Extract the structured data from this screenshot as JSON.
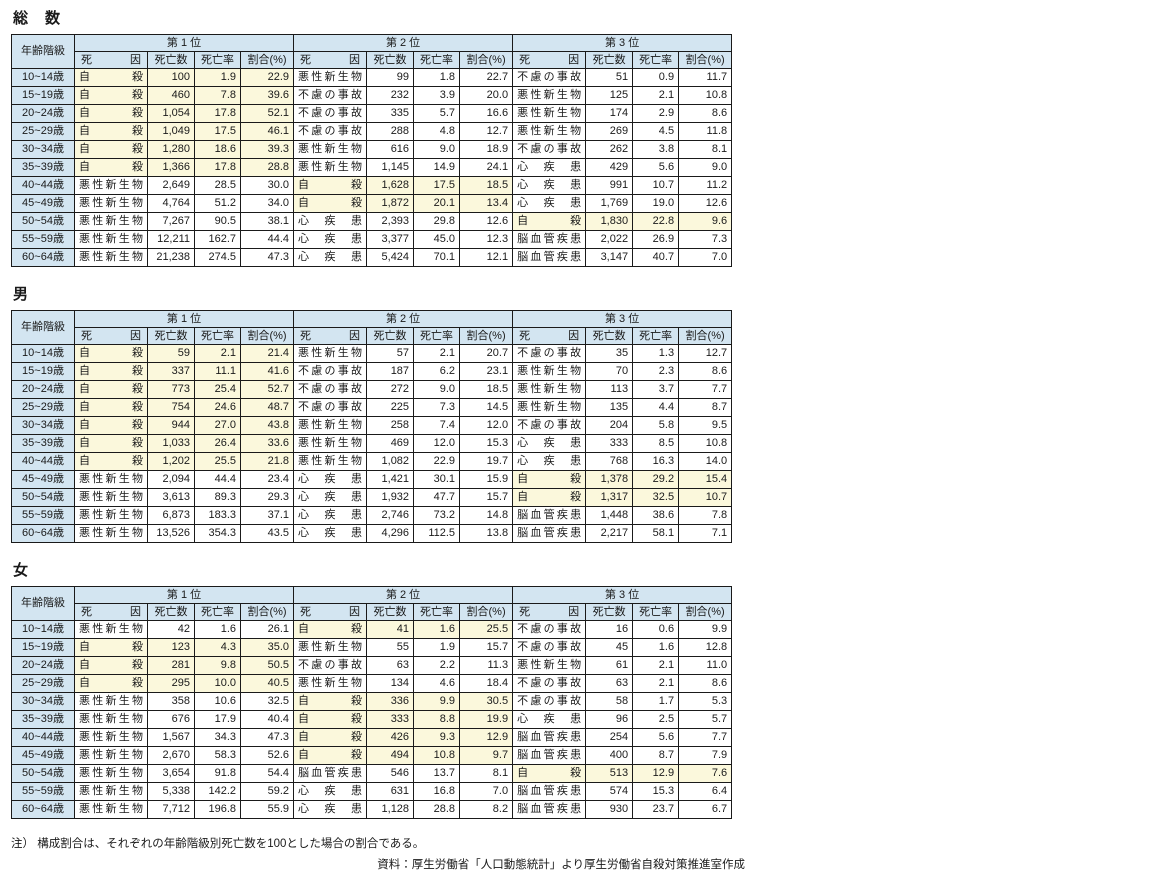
{
  "colors": {
    "header_bg": "#d3e5f1",
    "highlight_bg": "#fbf8dc",
    "border": "#1a1a1a"
  },
  "columns": {
    "age": "年齢階級",
    "cause": "死 因",
    "deaths": "死亡数",
    "rate": "死亡率",
    "share": "割合(%)"
  },
  "rank_headers": [
    "第 1 位",
    "第 2 位",
    "第 3 位"
  ],
  "highlight_meaning": "suicide-cells-highlighted",
  "tables": [
    {
      "id": "total",
      "title": "総　数",
      "rows": [
        {
          "age": "10~14歳",
          "ranks": [
            [
              "自 殺",
              "100",
              "1.9",
              "22.9",
              1
            ],
            [
              "悪性新生物",
              "99",
              "1.8",
              "22.7",
              0
            ],
            [
              "不慮の事故",
              "51",
              "0.9",
              "11.7",
              0
            ]
          ]
        },
        {
          "age": "15~19歳",
          "ranks": [
            [
              "自 殺",
              "460",
              "7.8",
              "39.6",
              1
            ],
            [
              "不慮の事故",
              "232",
              "3.9",
              "20.0",
              0
            ],
            [
              "悪性新生物",
              "125",
              "2.1",
              "10.8",
              0
            ]
          ]
        },
        {
          "age": "20~24歳",
          "ranks": [
            [
              "自 殺",
              "1,054",
              "17.8",
              "52.1",
              1
            ],
            [
              "不慮の事故",
              "335",
              "5.7",
              "16.6",
              0
            ],
            [
              "悪性新生物",
              "174",
              "2.9",
              "8.6",
              0
            ]
          ]
        },
        {
          "age": "25~29歳",
          "ranks": [
            [
              "自 殺",
              "1,049",
              "17.5",
              "46.1",
              1
            ],
            [
              "不慮の事故",
              "288",
              "4.8",
              "12.7",
              0
            ],
            [
              "悪性新生物",
              "269",
              "4.5",
              "11.8",
              0
            ]
          ]
        },
        {
          "age": "30~34歳",
          "ranks": [
            [
              "自 殺",
              "1,280",
              "18.6",
              "39.3",
              1
            ],
            [
              "悪性新生物",
              "616",
              "9.0",
              "18.9",
              0
            ],
            [
              "不慮の事故",
              "262",
              "3.8",
              "8.1",
              0
            ]
          ]
        },
        {
          "age": "35~39歳",
          "ranks": [
            [
              "自 殺",
              "1,366",
              "17.8",
              "28.8",
              1
            ],
            [
              "悪性新生物",
              "1,145",
              "14.9",
              "24.1",
              0
            ],
            [
              "心 疾 患",
              "429",
              "5.6",
              "9.0",
              0
            ]
          ]
        },
        {
          "age": "40~44歳",
          "ranks": [
            [
              "悪性新生物",
              "2,649",
              "28.5",
              "30.0",
              0
            ],
            [
              "自 殺",
              "1,628",
              "17.5",
              "18.5",
              1
            ],
            [
              "心 疾 患",
              "991",
              "10.7",
              "11.2",
              0
            ]
          ]
        },
        {
          "age": "45~49歳",
          "ranks": [
            [
              "悪性新生物",
              "4,764",
              "51.2",
              "34.0",
              0
            ],
            [
              "自 殺",
              "1,872",
              "20.1",
              "13.4",
              1
            ],
            [
              "心 疾 患",
              "1,769",
              "19.0",
              "12.6",
              0
            ]
          ]
        },
        {
          "age": "50~54歳",
          "ranks": [
            [
              "悪性新生物",
              "7,267",
              "90.5",
              "38.1",
              0
            ],
            [
              "心 疾 患",
              "2,393",
              "29.8",
              "12.6",
              0
            ],
            [
              "自 殺",
              "1,830",
              "22.8",
              "9.6",
              1
            ]
          ]
        },
        {
          "age": "55~59歳",
          "ranks": [
            [
              "悪性新生物",
              "12,211",
              "162.7",
              "44.4",
              0
            ],
            [
              "心 疾 患",
              "3,377",
              "45.0",
              "12.3",
              0
            ],
            [
              "脳血管疾患",
              "2,022",
              "26.9",
              "7.3",
              0
            ]
          ]
        },
        {
          "age": "60~64歳",
          "ranks": [
            [
              "悪性新生物",
              "21,238",
              "274.5",
              "47.3",
              0
            ],
            [
              "心 疾 患",
              "5,424",
              "70.1",
              "12.1",
              0
            ],
            [
              "脳血管疾患",
              "3,147",
              "40.7",
              "7.0",
              0
            ]
          ]
        }
      ]
    },
    {
      "id": "male",
      "title": "男",
      "rows": [
        {
          "age": "10~14歳",
          "ranks": [
            [
              "自 殺",
              "59",
              "2.1",
              "21.4",
              1
            ],
            [
              "悪性新生物",
              "57",
              "2.1",
              "20.7",
              0
            ],
            [
              "不慮の事故",
              "35",
              "1.3",
              "12.7",
              0
            ]
          ]
        },
        {
          "age": "15~19歳",
          "ranks": [
            [
              "自 殺",
              "337",
              "11.1",
              "41.6",
              1
            ],
            [
              "不慮の事故",
              "187",
              "6.2",
              "23.1",
              0
            ],
            [
              "悪性新生物",
              "70",
              "2.3",
              "8.6",
              0
            ]
          ]
        },
        {
          "age": "20~24歳",
          "ranks": [
            [
              "自 殺",
              "773",
              "25.4",
              "52.7",
              1
            ],
            [
              "不慮の事故",
              "272",
              "9.0",
              "18.5",
              0
            ],
            [
              "悪性新生物",
              "113",
              "3.7",
              "7.7",
              0
            ]
          ]
        },
        {
          "age": "25~29歳",
          "ranks": [
            [
              "自 殺",
              "754",
              "24.6",
              "48.7",
              1
            ],
            [
              "不慮の事故",
              "225",
              "7.3",
              "14.5",
              0
            ],
            [
              "悪性新生物",
              "135",
              "4.4",
              "8.7",
              0
            ]
          ]
        },
        {
          "age": "30~34歳",
          "ranks": [
            [
              "自 殺",
              "944",
              "27.0",
              "43.8",
              1
            ],
            [
              "悪性新生物",
              "258",
              "7.4",
              "12.0",
              0
            ],
            [
              "不慮の事故",
              "204",
              "5.8",
              "9.5",
              0
            ]
          ]
        },
        {
          "age": "35~39歳",
          "ranks": [
            [
              "自 殺",
              "1,033",
              "26.4",
              "33.6",
              1
            ],
            [
              "悪性新生物",
              "469",
              "12.0",
              "15.3",
              0
            ],
            [
              "心 疾 患",
              "333",
              "8.5",
              "10.8",
              0
            ]
          ]
        },
        {
          "age": "40~44歳",
          "ranks": [
            [
              "自 殺",
              "1,202",
              "25.5",
              "21.8",
              1
            ],
            [
              "悪性新生物",
              "1,082",
              "22.9",
              "19.7",
              0
            ],
            [
              "心 疾 患",
              "768",
              "16.3",
              "14.0",
              0
            ]
          ]
        },
        {
          "age": "45~49歳",
          "ranks": [
            [
              "悪性新生物",
              "2,094",
              "44.4",
              "23.4",
              0
            ],
            [
              "心 疾 患",
              "1,421",
              "30.1",
              "15.9",
              0
            ],
            [
              "自 殺",
              "1,378",
              "29.2",
              "15.4",
              1
            ]
          ]
        },
        {
          "age": "50~54歳",
          "ranks": [
            [
              "悪性新生物",
              "3,613",
              "89.3",
              "29.3",
              0
            ],
            [
              "心 疾 患",
              "1,932",
              "47.7",
              "15.7",
              0
            ],
            [
              "自 殺",
              "1,317",
              "32.5",
              "10.7",
              1
            ]
          ]
        },
        {
          "age": "55~59歳",
          "ranks": [
            [
              "悪性新生物",
              "6,873",
              "183.3",
              "37.1",
              0
            ],
            [
              "心 疾 患",
              "2,746",
              "73.2",
              "14.8",
              0
            ],
            [
              "脳血管疾患",
              "1,448",
              "38.6",
              "7.8",
              0
            ]
          ]
        },
        {
          "age": "60~64歳",
          "ranks": [
            [
              "悪性新生物",
              "13,526",
              "354.3",
              "43.5",
              0
            ],
            [
              "心 疾 患",
              "4,296",
              "112.5",
              "13.8",
              0
            ],
            [
              "脳血管疾患",
              "2,217",
              "58.1",
              "7.1",
              0
            ]
          ]
        }
      ]
    },
    {
      "id": "female",
      "title": "女",
      "rows": [
        {
          "age": "10~14歳",
          "ranks": [
            [
              "悪性新生物",
              "42",
              "1.6",
              "26.1",
              0
            ],
            [
              "自 殺",
              "41",
              "1.6",
              "25.5",
              1
            ],
            [
              "不慮の事故",
              "16",
              "0.6",
              "9.9",
              0
            ]
          ]
        },
        {
          "age": "15~19歳",
          "ranks": [
            [
              "自 殺",
              "123",
              "4.3",
              "35.0",
              1
            ],
            [
              "悪性新生物",
              "55",
              "1.9",
              "15.7",
              0
            ],
            [
              "不慮の事故",
              "45",
              "1.6",
              "12.8",
              0
            ]
          ]
        },
        {
          "age": "20~24歳",
          "ranks": [
            [
              "自 殺",
              "281",
              "9.8",
              "50.5",
              1
            ],
            [
              "不慮の事故",
              "63",
              "2.2",
              "11.3",
              0
            ],
            [
              "悪性新生物",
              "61",
              "2.1",
              "11.0",
              0
            ]
          ]
        },
        {
          "age": "25~29歳",
          "ranks": [
            [
              "自 殺",
              "295",
              "10.0",
              "40.5",
              1
            ],
            [
              "悪性新生物",
              "134",
              "4.6",
              "18.4",
              0
            ],
            [
              "不慮の事故",
              "63",
              "2.1",
              "8.6",
              0
            ]
          ]
        },
        {
          "age": "30~34歳",
          "ranks": [
            [
              "悪性新生物",
              "358",
              "10.6",
              "32.5",
              0
            ],
            [
              "自 殺",
              "336",
              "9.9",
              "30.5",
              1
            ],
            [
              "不慮の事故",
              "58",
              "1.7",
              "5.3",
              0
            ]
          ]
        },
        {
          "age": "35~39歳",
          "ranks": [
            [
              "悪性新生物",
              "676",
              "17.9",
              "40.4",
              0
            ],
            [
              "自 殺",
              "333",
              "8.8",
              "19.9",
              1
            ],
            [
              "心 疾 患",
              "96",
              "2.5",
              "5.7",
              0
            ]
          ]
        },
        {
          "age": "40~44歳",
          "ranks": [
            [
              "悪性新生物",
              "1,567",
              "34.3",
              "47.3",
              0
            ],
            [
              "自 殺",
              "426",
              "9.3",
              "12.9",
              1
            ],
            [
              "脳血管疾患",
              "254",
              "5.6",
              "7.7",
              0
            ]
          ]
        },
        {
          "age": "45~49歳",
          "ranks": [
            [
              "悪性新生物",
              "2,670",
              "58.3",
              "52.6",
              0
            ],
            [
              "自 殺",
              "494",
              "10.8",
              "9.7",
              1
            ],
            [
              "脳血管疾患",
              "400",
              "8.7",
              "7.9",
              0
            ]
          ]
        },
        {
          "age": "50~54歳",
          "ranks": [
            [
              "悪性新生物",
              "3,654",
              "91.8",
              "54.4",
              0
            ],
            [
              "脳血管疾患",
              "546",
              "13.7",
              "8.1",
              0
            ],
            [
              "自 殺",
              "513",
              "12.9",
              "7.6",
              1
            ]
          ]
        },
        {
          "age": "55~59歳",
          "ranks": [
            [
              "悪性新生物",
              "5,338",
              "142.2",
              "59.2",
              0
            ],
            [
              "心 疾 患",
              "631",
              "16.8",
              "7.0",
              0
            ],
            [
              "脳血管疾患",
              "574",
              "15.3",
              "6.4",
              0
            ]
          ]
        },
        {
          "age": "60~64歳",
          "ranks": [
            [
              "悪性新生物",
              "7,712",
              "196.8",
              "55.9",
              0
            ],
            [
              "心 疾 患",
              "1,128",
              "28.8",
              "8.2",
              0
            ],
            [
              "脳血管疾患",
              "930",
              "23.7",
              "6.7",
              0
            ]
          ]
        }
      ]
    }
  ],
  "footer": {
    "note": "注） 構成割合は、それぞれの年齢階級別死亡数を100とした場合の割合である。",
    "source": "資料：厚生労働省「人口動態統計」より厚生労働省自殺対策推進室作成"
  }
}
